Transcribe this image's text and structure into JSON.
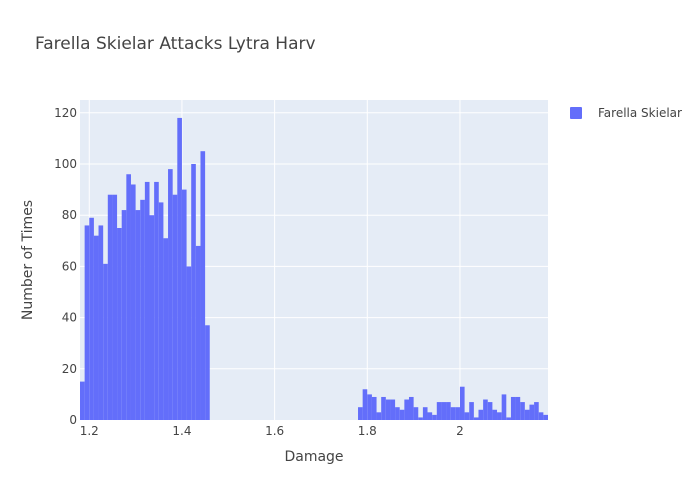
{
  "chart_data": {
    "type": "bar",
    "title": "Farella Skielar Attacks Lytra Harv",
    "xlabel": "Damage",
    "ylabel": "Number of Times",
    "xlim": [
      1.18,
      2.19
    ],
    "ylim": [
      0,
      125
    ],
    "grid": true,
    "legend_placement": "top-right",
    "bar_color": "#636efa",
    "plot_bg": "#e5ecf6",
    "x_ticks": [
      1.2,
      1.4,
      1.6,
      1.8,
      2
    ],
    "x_tick_labels": [
      "1.2",
      "1.4",
      "1.6",
      "1.8",
      "2"
    ],
    "y_ticks": [
      0,
      20,
      40,
      60,
      80,
      100,
      120
    ],
    "y_tick_labels": [
      "0",
      "20",
      "40",
      "60",
      "80",
      "100",
      "120"
    ],
    "series": [
      {
        "name": "Farella Skielar",
        "bin_width": 0.01,
        "bins_start": [
          1.18,
          1.19,
          1.2,
          1.21,
          1.22,
          1.23,
          1.24,
          1.25,
          1.26,
          1.27,
          1.28,
          1.29,
          1.3,
          1.31,
          1.32,
          1.33,
          1.34,
          1.35,
          1.36,
          1.37,
          1.38,
          1.39,
          1.4,
          1.41,
          1.42,
          1.43,
          1.44,
          1.45,
          1.78,
          1.79,
          1.8,
          1.81,
          1.82,
          1.83,
          1.84,
          1.85,
          1.86,
          1.87,
          1.88,
          1.89,
          1.9,
          1.91,
          1.92,
          1.93,
          1.94,
          1.95,
          1.96,
          1.97,
          1.98,
          1.99,
          2.0,
          2.01,
          2.02,
          2.03,
          2.04,
          2.05,
          2.06,
          2.07,
          2.08,
          2.09,
          2.1,
          2.11,
          2.12,
          2.13,
          2.14,
          2.15,
          2.16,
          2.17,
          2.18
        ],
        "counts": [
          15,
          76,
          79,
          72,
          76,
          61,
          88,
          88,
          75,
          82,
          96,
          92,
          82,
          86,
          93,
          80,
          93,
          85,
          71,
          98,
          88,
          118,
          90,
          60,
          100,
          68,
          105,
          37,
          5,
          12,
          10,
          9,
          3,
          9,
          8,
          8,
          5,
          4,
          8,
          9,
          5,
          1,
          5,
          3,
          2,
          7,
          7,
          7,
          5,
          5,
          13,
          3,
          7,
          1,
          4,
          8,
          7,
          4,
          3,
          10,
          1,
          9,
          9,
          7,
          4,
          6,
          7,
          3,
          2
        ]
      }
    ]
  }
}
